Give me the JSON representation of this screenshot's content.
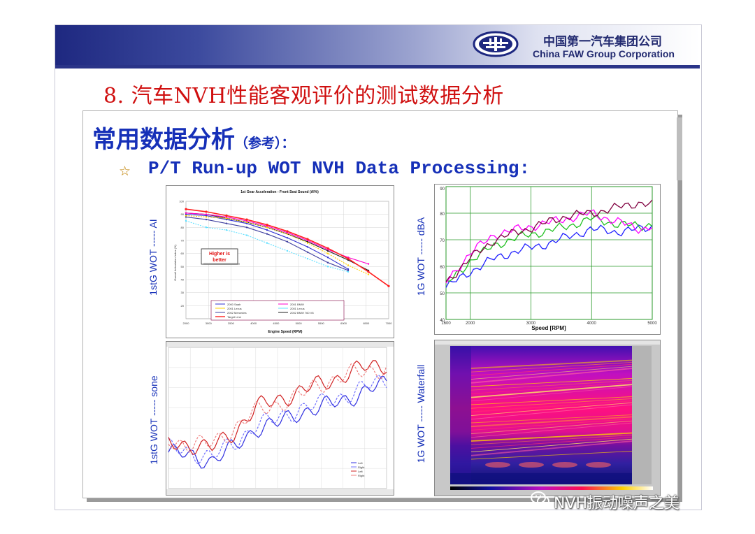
{
  "header": {
    "company_cn": "中国第一汽车集团公司",
    "company_en": "China FAW Group Corporation",
    "logo": "faw-logo-icon",
    "brand_color": "#1e2880"
  },
  "slide_title": "8. 汽车NVH性能客观评价的测试数据分析",
  "section": {
    "heading": "常用数据分析",
    "heading_note": "（参考）：",
    "bullet_icon": "star-outline-icon",
    "bullet_text": "P/T Run-up WOT NVH Data Processing:"
  },
  "charts": {
    "ai": {
      "side_label": "1stG WOT ----- AI",
      "title": "1st Gear Acceleration - Front Seat Sound (AI%)",
      "annotation_line1": "Higher is",
      "annotation_line2": "better",
      "xlabel": "Engine Speed (RPM)",
      "ylabel": "Overall Articulation Index (%)",
      "x_ticks": [
        "2000",
        "3000",
        "3500",
        "4000",
        "4500",
        "5000",
        "5500",
        "6000",
        "6500",
        "7000"
      ],
      "y_ticks": [
        "100",
        "90",
        "80",
        "70",
        "60",
        "50",
        "40",
        "30",
        "20"
      ],
      "legend": [
        "2000 Saab",
        "2001 BMW",
        "2001 Lexus",
        "2001 Lexus",
        "2002 Mercedes",
        "2002 BMW 760 V8",
        "Target Line"
      ]
    },
    "dba": {
      "side_label": "1G WOT ----- dBA",
      "xlabel": "Speed [RPM]",
      "x_ticks": [
        "1600",
        "2000",
        "3000",
        "4000",
        "5000"
      ],
      "y_ticks": [
        "90",
        "80",
        "70",
        "60",
        "50",
        "40"
      ]
    },
    "sone": {
      "side_label": "1stG WOT ----- sone",
      "legend": [
        "Left",
        "Right",
        "Left",
        "Right"
      ]
    },
    "waterfall": {
      "side_label": "1G WOT ----- Waterfall"
    }
  },
  "chart_data": [
    {
      "type": "line",
      "title": "1st Gear Acceleration - Front Seat Sound (AI%)",
      "xlabel": "Engine Speed (RPM)",
      "ylabel": "Overall Articulation Index (%)",
      "xlim": [
        2000,
        7000
      ],
      "ylim": [
        10,
        100
      ],
      "x": [
        2000,
        2500,
        3000,
        3500,
        4000,
        4500,
        5000,
        5500,
        6000,
        6500,
        7000
      ],
      "series": [
        {
          "name": "Target Line",
          "color": "#ff2020",
          "values": [
            94,
            92,
            89,
            86,
            82,
            77,
            71,
            64,
            56,
            46,
            35
          ]
        },
        {
          "name": "2001 BMW",
          "color": "#ff00cc",
          "values": [
            91,
            90,
            88,
            85,
            81,
            76,
            70,
            63,
            57,
            52,
            null
          ]
        },
        {
          "name": "2001 Lexus",
          "color": "#ffd000",
          "values": [
            89,
            88,
            87,
            84,
            80,
            75,
            68,
            60,
            51,
            44,
            null
          ]
        },
        {
          "name": "2000 Saab",
          "color": "#3030d0",
          "values": [
            90,
            89,
            86,
            83,
            78,
            72,
            65,
            57,
            48,
            null,
            null
          ]
        },
        {
          "name": "2002 BMW 760 V8",
          "color": "#202020",
          "values": [
            91,
            90,
            87,
            84,
            80,
            75,
            69,
            62,
            55,
            47,
            null
          ]
        },
        {
          "name": "2002 Mercedes",
          "color": "#4040a0",
          "values": [
            88,
            86,
            83,
            80,
            75,
            69,
            61,
            53,
            47,
            null,
            null
          ]
        },
        {
          "name": "2001 Lexus",
          "color": "#60e0ff",
          "values": [
            85,
            80,
            78,
            74,
            68,
            62,
            56,
            50,
            46,
            null,
            null
          ]
        }
      ]
    },
    {
      "type": "line",
      "xlabel": "Speed [RPM]",
      "xlim": [
        1600,
        5000
      ],
      "ylim": [
        40,
        90
      ],
      "x": [
        1600,
        2000,
        2400,
        2800,
        3200,
        3600,
        4000,
        4400,
        4800,
        5000
      ],
      "series": [
        {
          "color": "#2020ff",
          "values": [
            52,
            58,
            63,
            66,
            68,
            71,
            74,
            73,
            74,
            75
          ]
        },
        {
          "color": "#20c020",
          "values": [
            53,
            62,
            68,
            71,
            73,
            75,
            78,
            76,
            75,
            76
          ]
        },
        {
          "color": "#ff00ff",
          "values": [
            54,
            65,
            72,
            74,
            76,
            78,
            80,
            77,
            74,
            75
          ]
        },
        {
          "color": "#800040",
          "values": [
            54,
            63,
            70,
            73,
            76,
            79,
            80,
            82,
            84,
            83
          ]
        }
      ]
    },
    {
      "type": "line",
      "x": [
        2250,
        2500,
        2750,
        3000,
        3250,
        3500,
        3750,
        4000,
        4250,
        4500,
        4750
      ],
      "series": [
        {
          "name": "Left",
          "color": "#3030e0",
          "values": [
            19,
            18,
            17,
            20,
            25,
            26,
            29,
            30,
            32,
            34,
            36
          ]
        },
        {
          "name": "Right",
          "color": "#7070ff",
          "values": [
            20,
            19,
            18,
            21,
            26,
            27,
            30,
            31,
            33,
            35,
            37
          ]
        },
        {
          "name": "Left",
          "color": "#d02020",
          "values": [
            21,
            21,
            20,
            24,
            30,
            32,
            34,
            36,
            38,
            40,
            41
          ]
        },
        {
          "name": "Right",
          "color": "#f08080",
          "values": [
            22,
            21,
            21,
            25,
            29,
            31,
            33,
            36,
            38,
            39,
            40
          ]
        }
      ]
    },
    {
      "type": "heatmap"
    }
  ]
}
